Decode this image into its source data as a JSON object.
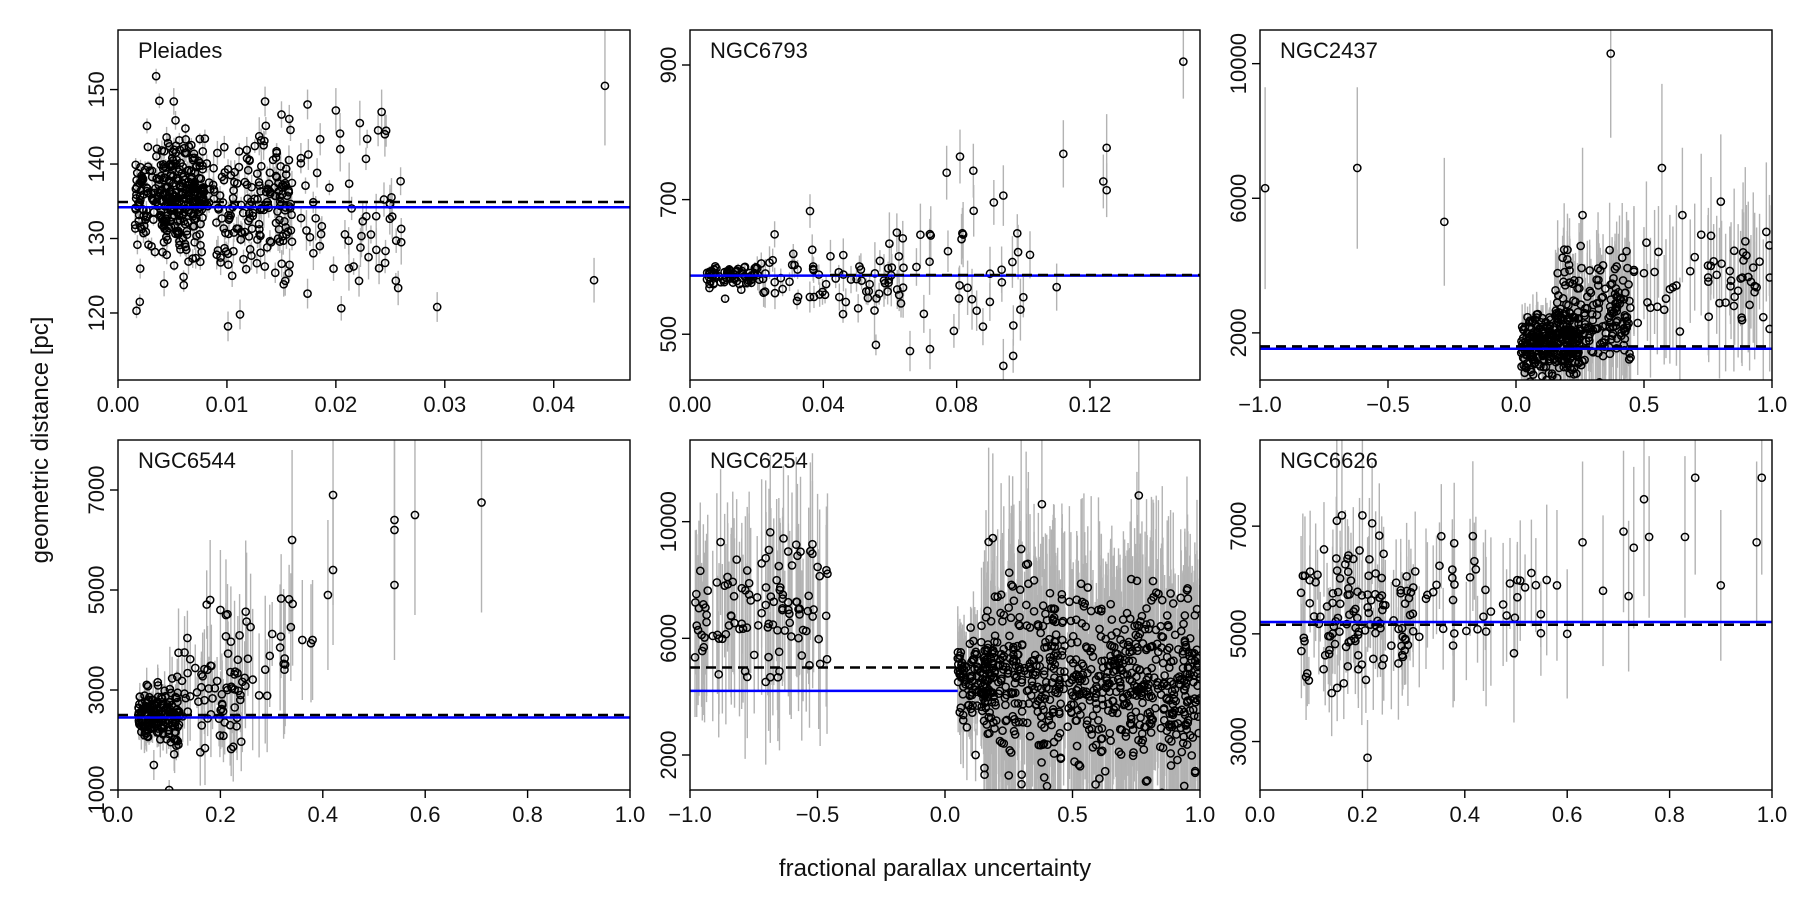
{
  "figure": {
    "ylabel": "geometric distance [pc]",
    "xlabel": "fractional parallax uncertainty"
  },
  "colors": {
    "points": "#000000",
    "errorbars": "#b3b3b3",
    "model_line": "#0000ff",
    "reference_line": "#000000"
  },
  "chart_data": [
    {
      "type": "scatter",
      "title": "Pleiades",
      "xlim": [
        0,
        0.047
      ],
      "ylim": [
        111,
        158
      ],
      "xticks": [
        0,
        0.01,
        0.02,
        0.03,
        0.04
      ],
      "xtick_labels": [
        "0.00",
        "0.01",
        "0.02",
        "0.03",
        "0.04"
      ],
      "yticks": [
        120,
        130,
        140,
        150
      ],
      "ytick_labels": [
        "120",
        "130",
        "140",
        "150"
      ],
      "blue_line": {
        "y": 134.2,
        "x_from": 0,
        "x_to": 0.047
      },
      "dashed_line": {
        "y": 134.9,
        "x_from": 0,
        "x_to": 0.047
      },
      "clusters": [
        {
          "n": 260,
          "x": [
            0.0015,
            0.008
          ],
          "ymean": 135,
          "ysd": 3.5,
          "err": [
            0.5,
            1.5
          ]
        },
        {
          "n": 240,
          "x": [
            0.004,
            0.016
          ],
          "ymean": 135,
          "ysd": 5,
          "err": [
            0.6,
            2
          ]
        },
        {
          "n": 70,
          "x": [
            0.012,
            0.026
          ],
          "ymean": 135,
          "ysd": 6,
          "err": [
            1,
            3
          ]
        }
      ],
      "points": [
        [
          0.0293,
          120.8,
          2
        ],
        [
          0.0437,
          124.4,
          3
        ],
        [
          0.0447,
          150.5,
          8
        ],
        [
          0.0242,
          147.0,
          3
        ],
        [
          0.0245,
          144.0,
          3
        ],
        [
          0.026,
          129.5,
          3
        ],
        [
          0.0222,
          145.5,
          3
        ],
        [
          0.0237,
          133.0,
          3
        ],
        [
          0.023,
          127.5,
          3
        ],
        [
          0.0212,
          126.0,
          3
        ],
        [
          0.02,
          147.2,
          3
        ],
        [
          0.0204,
          142.0,
          3
        ],
        [
          0.0017,
          120.3,
          1
        ],
        [
          0.002,
          121.5,
          1
        ],
        [
          0.0035,
          151.8,
          1
        ],
        [
          0.0038,
          148.5,
          1
        ],
        [
          0.0101,
          118.2,
          2
        ],
        [
          0.0112,
          119.8,
          2
        ],
        [
          0.0174,
          122.6,
          2
        ],
        [
          0.0135,
          148.4,
          2
        ],
        [
          0.0174,
          148.0,
          2
        ]
      ]
    },
    {
      "type": "scatter",
      "title": "NGC6793",
      "xlim": [
        0,
        0.153
      ],
      "ylim": [
        432,
        952
      ],
      "xticks": [
        0,
        0.04,
        0.08,
        0.12
      ],
      "xtick_labels": [
        "0.00",
        "0.04",
        "0.08",
        "0.12"
      ],
      "yticks": [
        500,
        700,
        900
      ],
      "ytick_labels": [
        "500",
        "700",
        "900"
      ],
      "blue_line": {
        "y": 587,
        "x_from": 0,
        "x_to": 0.153
      },
      "dashed_line": {
        "y": 588,
        "x_from": 0.042,
        "x_to": 0.153
      },
      "clusters": [
        {
          "n": 70,
          "x": [
            0.005,
            0.02
          ],
          "ymean": 588,
          "ysd": 9,
          "err": [
            3,
            9
          ]
        },
        {
          "n": 60,
          "x": [
            0.02,
            0.06
          ],
          "ymean": 585,
          "ysd": 28,
          "err": [
            10,
            25
          ]
        },
        {
          "n": 40,
          "x": [
            0.05,
            0.1
          ],
          "ymean": 590,
          "ysd": 45,
          "err": [
            20,
            50
          ]
        }
      ],
      "points": [
        [
          0.148,
          905,
          55
        ],
        [
          0.112,
          768,
          50
        ],
        [
          0.125,
          777,
          50
        ],
        [
          0.124,
          727,
          40
        ],
        [
          0.125,
          714,
          40
        ],
        [
          0.081,
          764,
          40
        ],
        [
          0.077,
          740,
          40
        ],
        [
          0.085,
          743,
          40
        ],
        [
          0.094,
          706,
          45
        ],
        [
          0.036,
          683,
          25
        ],
        [
          0.094,
          453,
          40
        ],
        [
          0.066,
          475,
          30
        ],
        [
          0.072,
          478,
          30
        ],
        [
          0.097,
          513,
          30
        ],
        [
          0.102,
          618,
          35
        ],
        [
          0.11,
          570,
          35
        ],
        [
          0.086,
          535,
          30
        ],
        [
          0.09,
          590,
          40
        ],
        [
          0.1,
          555,
          30
        ]
      ]
    },
    {
      "type": "scatter",
      "title": "NGC2437",
      "xlim": [
        -1,
        1
      ],
      "ylim": [
        600,
        11000
      ],
      "xticks": [
        -1,
        -0.5,
        0,
        0.5,
        1
      ],
      "xtick_labels": [
        "−1.0",
        "−0.5",
        "0.0",
        "0.5",
        "1.0"
      ],
      "yticks": [
        2000,
        6000,
        10000
      ],
      "ytick_labels": [
        "2000",
        "6000",
        "10000"
      ],
      "blue_line": {
        "y": 1530,
        "x_from": -1,
        "x_to": 1
      },
      "dashed_line": {
        "y": 1600,
        "x_from": -1,
        "x_to": 1
      },
      "clusters": [
        {
          "n": 300,
          "x": [
            0.02,
            0.25
          ],
          "ymean": 1700,
          "ysd": 450,
          "err": [
            200,
            800
          ]
        },
        {
          "n": 180,
          "x": [
            0.15,
            0.45
          ],
          "ymean": 2500,
          "ysd": 800,
          "err": [
            500,
            1800
          ]
        },
        {
          "n": 60,
          "x": [
            0.4,
            1.0
          ],
          "ymean": 3500,
          "ysd": 800,
          "err": [
            1000,
            2500
          ]
        }
      ],
      "points": [
        [
          -0.98,
          6300,
          3000
        ],
        [
          -0.62,
          6900,
          2400
        ],
        [
          -0.28,
          5300,
          1900
        ],
        [
          0.37,
          10300,
          2500
        ],
        [
          0.57,
          6900,
          2500
        ],
        [
          0.8,
          5900,
          2000
        ],
        [
          0.99,
          4600,
          1500
        ],
        [
          0.26,
          5500,
          2000
        ],
        [
          0.65,
          5500,
          2000
        ],
        [
          0.9,
          4300,
          1500
        ],
        [
          0.75,
          4000,
          1500
        ]
      ]
    },
    {
      "type": "scatter",
      "title": "NGC6544",
      "xlim": [
        0,
        1
      ],
      "ylim": [
        1000,
        8000
      ],
      "xticks": [
        0,
        0.2,
        0.4,
        0.6,
        0.8,
        1.0
      ],
      "xtick_labels": [
        "0.0",
        "0.2",
        "0.4",
        "0.6",
        "0.8",
        "1.0"
      ],
      "yticks": [
        1000,
        3000,
        5000,
        7000
      ],
      "ytick_labels": [
        "1000",
        "3000",
        "5000",
        "7000"
      ],
      "blue_line": {
        "y": 2450,
        "x_from": 0,
        "x_to": 1
      },
      "dashed_line": {
        "y": 2500,
        "x_from": 0,
        "x_to": 1
      },
      "clusters": [
        {
          "n": 170,
          "x": [
            0.04,
            0.12
          ],
          "ymean": 2500,
          "ysd": 260,
          "err": [
            100,
            400
          ]
        },
        {
          "n": 70,
          "x": [
            0.1,
            0.25
          ],
          "ymean": 2900,
          "ysd": 550,
          "err": [
            300,
            900
          ]
        },
        {
          "n": 30,
          "x": [
            0.2,
            0.38
          ],
          "ymean": 3700,
          "ysd": 700,
          "err": [
            600,
            1500
          ]
        }
      ],
      "points": [
        [
          0.42,
          6900,
          2200
        ],
        [
          0.54,
          6400,
          2000
        ],
        [
          0.54,
          6200,
          2000
        ],
        [
          0.54,
          5100,
          1500
        ],
        [
          0.58,
          6500,
          2000
        ],
        [
          0.71,
          6750,
          2200
        ],
        [
          0.42,
          5400,
          1500
        ],
        [
          0.41,
          4900,
          1500
        ],
        [
          0.34,
          6000,
          1800
        ],
        [
          0.1,
          1000,
          200
        ],
        [
          0.07,
          1500,
          300
        ],
        [
          0.18,
          4800,
          1200
        ],
        [
          0.2,
          4600,
          1200
        ],
        [
          0.38,
          4000,
          1200
        ],
        [
          0.36,
          4000,
          1200
        ]
      ]
    },
    {
      "type": "scatter",
      "title": "NGC6254",
      "xlim": [
        -1,
        1
      ],
      "ylim": [
        800,
        12800
      ],
      "xticks": [
        -1,
        -0.5,
        0,
        0.5,
        1
      ],
      "xtick_labels": [
        "−1.0",
        "−0.5",
        "0.0",
        "0.5",
        "1.0"
      ],
      "yticks": [
        2000,
        6000,
        10000
      ],
      "ytick_labels": [
        "2000",
        "6000",
        "10000"
      ],
      "blue_line": {
        "y": 4200,
        "x_from": -1,
        "x_to": 0.05
      },
      "dashed_line": {
        "y": 5000,
        "x_from": -1,
        "x_to": 0.05
      },
      "clusters": [
        {
          "n": 110,
          "x": [
            -0.99,
            -0.46
          ],
          "ymean": 7000,
          "ysd": 1100,
          "err": [
            2000,
            3200
          ]
        },
        {
          "n": 120,
          "x": [
            0.05,
            0.2
          ],
          "ymean": 4800,
          "ysd": 700,
          "err": [
            600,
            2000
          ]
        },
        {
          "n": 700,
          "x": [
            0.15,
            1.0
          ],
          "ymean": 4600,
          "ysd": 1500,
          "err": [
            2000,
            4000
          ]
        }
      ],
      "points": [
        [
          0.38,
          10600,
          2500
        ],
        [
          0.76,
          10900,
          2500
        ],
        [
          -0.88,
          9300,
          2500
        ],
        [
          -0.6,
          8500,
          2500
        ],
        [
          -0.52,
          8900,
          2500
        ],
        [
          0.3,
          1000,
          800
        ],
        [
          0.25,
          1300,
          800
        ],
        [
          0.12,
          2000,
          900
        ]
      ]
    },
    {
      "type": "scatter",
      "title": "NGC6626",
      "xlim": [
        0,
        1
      ],
      "ylim": [
        2100,
        8600
      ],
      "xticks": [
        0,
        0.2,
        0.4,
        0.6,
        0.8,
        1.0
      ],
      "xtick_labels": [
        "0.0",
        "0.2",
        "0.4",
        "0.6",
        "0.8",
        "1.0"
      ],
      "yticks": [
        3000,
        5000,
        7000
      ],
      "ytick_labels": [
        "3000",
        "5000",
        "7000"
      ],
      "blue_line": {
        "y": 5220,
        "x_from": 0,
        "x_to": 1
      },
      "dashed_line": {
        "y": 5170,
        "x_from": 0,
        "x_to": 1
      },
      "clusters": [
        {
          "n": 120,
          "x": [
            0.08,
            0.3
          ],
          "ymean": 5400,
          "ysd": 650,
          "err": [
            400,
            1200
          ]
        },
        {
          "n": 40,
          "x": [
            0.28,
            0.55
          ],
          "ymean": 5600,
          "ysd": 650,
          "err": [
            600,
            1400
          ]
        }
      ],
      "points": [
        [
          0.21,
          2700,
          700
        ],
        [
          0.98,
          7900,
          1800
        ],
        [
          0.85,
          7900,
          1800
        ],
        [
          0.75,
          7500,
          1800
        ],
        [
          0.71,
          6900,
          1500
        ],
        [
          0.73,
          6600,
          1500
        ],
        [
          0.76,
          6800,
          1500
        ],
        [
          0.83,
          6800,
          1500
        ],
        [
          0.9,
          5900,
          1400
        ],
        [
          0.97,
          6700,
          1500
        ],
        [
          0.63,
          6700,
          1500
        ],
        [
          0.67,
          5800,
          1400
        ],
        [
          0.72,
          5700,
          1400
        ],
        [
          0.58,
          5900,
          1400
        ],
        [
          0.6,
          5000,
          1200
        ],
        [
          0.56,
          6000,
          1400
        ],
        [
          0.15,
          7100,
          1500
        ],
        [
          0.16,
          7200,
          1500
        ],
        [
          0.2,
          7200,
          1500
        ],
        [
          0.09,
          4200,
          800
        ],
        [
          0.14,
          3900,
          800
        ]
      ]
    }
  ]
}
